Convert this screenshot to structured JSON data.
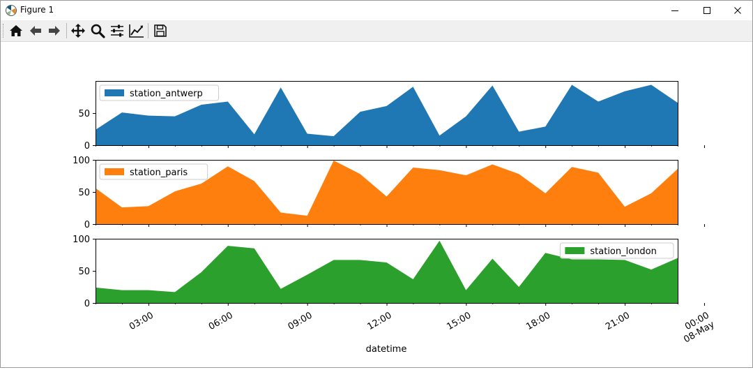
{
  "window": {
    "title": "Figure 1",
    "title_icon": "matplotlib-figure-icon",
    "controls": [
      {
        "name": "minimize-icon"
      },
      {
        "name": "maximize-icon"
      },
      {
        "name": "close-icon"
      }
    ]
  },
  "toolbar": {
    "buttons": [
      {
        "name": "home-icon"
      },
      {
        "name": "back-arrow-icon"
      },
      {
        "name": "forward-arrow-icon"
      },
      {
        "name": "pan-icon"
      },
      {
        "name": "zoom-icon"
      },
      {
        "name": "subplots-config-icon"
      },
      {
        "name": "edit-axis-icon"
      },
      {
        "name": "save-icon"
      }
    ]
  },
  "chart_data": [
    {
      "type": "area",
      "series": [
        {
          "name": "station_antwerp",
          "color": "#1f77b4",
          "values": [
            24,
            51,
            46,
            45,
            63,
            68,
            17,
            90,
            18,
            14,
            52,
            61,
            91,
            15,
            45,
            93,
            21,
            29,
            94,
            68,
            84,
            94,
            66
          ]
        }
      ],
      "ylim": [
        0,
        100
      ],
      "yticks": [
        "0",
        "50"
      ],
      "legend": "upper left",
      "xlabel": ""
    },
    {
      "type": "area",
      "series": [
        {
          "name": "station_paris",
          "color": "#ff7f0e",
          "values": [
            56,
            26,
            28,
            51,
            63,
            90,
            67,
            18,
            13,
            99,
            78,
            43,
            88,
            84,
            76,
            93,
            78,
            48,
            89,
            80,
            27,
            48,
            86
          ]
        }
      ],
      "ylim": [
        0,
        100
      ],
      "yticks": [
        "0",
        "50",
        "100"
      ],
      "legend": "upper left",
      "xlabel": ""
    },
    {
      "type": "area",
      "series": [
        {
          "name": "station_london",
          "color": "#2ca02c",
          "values": [
            24,
            20,
            20,
            17,
            48,
            89,
            85,
            22,
            44,
            67,
            67,
            63,
            37,
            97,
            20,
            69,
            25,
            78,
            68,
            68,
            67,
            52,
            70
          ]
        }
      ],
      "ylim": [
        0,
        100
      ],
      "yticks": [
        "0",
        "50",
        "100"
      ],
      "legend": "upper right",
      "xlabel": "datetime",
      "xtick_labels": [
        "03:00",
        "06:00",
        "09:00",
        "12:00",
        "15:00",
        "18:00",
        "21:00",
        "00:00\n08-May"
      ]
    }
  ]
}
